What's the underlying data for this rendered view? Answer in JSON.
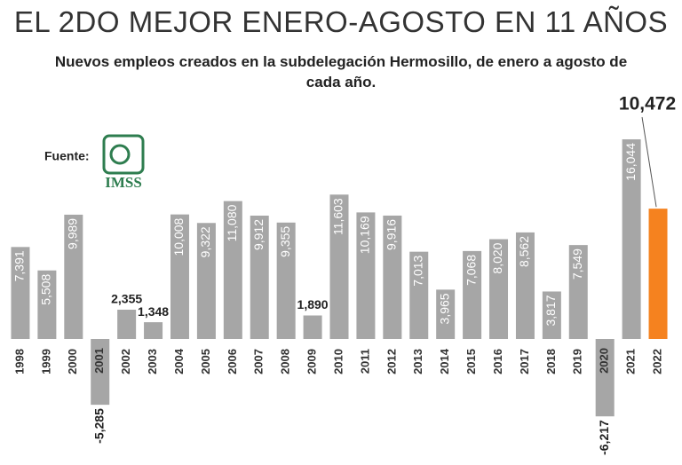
{
  "chart_data": {
    "type": "bar",
    "title": "EL 2DO MEJOR ENERO-AGOSTO EN 11 AÑOS",
    "subtitle": "Nuevos empleos creados en la subdelegación Hermosillo, de enero a agosto de cada año.",
    "source_label": "Fuente:",
    "source_logo": "IMSS",
    "categories": [
      "1998",
      "1999",
      "2000",
      "2001",
      "2002",
      "2003",
      "2004",
      "2005",
      "2006",
      "2007",
      "2008",
      "2009",
      "2010",
      "2011",
      "2012",
      "2013",
      "2014",
      "2015",
      "2016",
      "2017",
      "2018",
      "2019",
      "2020",
      "2021",
      "2022"
    ],
    "values": [
      7391,
      5508,
      9989,
      -5285,
      2355,
      1348,
      10008,
      9322,
      11080,
      9912,
      9355,
      1890,
      11603,
      10169,
      9916,
      7013,
      3965,
      7068,
      8020,
      8562,
      3817,
      7549,
      -6217,
      16044,
      10472
    ],
    "value_labels": [
      "7,391",
      "5,508",
      "9,989",
      "-5,285",
      "2,355",
      "1,348",
      "10,008",
      "9,322",
      "11,080",
      "9,912",
      "9,355",
      "1,890",
      "11,603",
      "10,169",
      "9,916",
      "7,013",
      "3,965",
      "7,068",
      "8,020",
      "8,562",
      "3,817",
      "7,549",
      "-6,217",
      "16,044",
      "10,472"
    ],
    "colors": [
      "#a6a6a6",
      "#a6a6a6",
      "#a6a6a6",
      "#a6a6a6",
      "#a6a6a6",
      "#a6a6a6",
      "#a6a6a6",
      "#a6a6a6",
      "#a6a6a6",
      "#a6a6a6",
      "#a6a6a6",
      "#a6a6a6",
      "#a6a6a6",
      "#a6a6a6",
      "#a6a6a6",
      "#a6a6a6",
      "#a6a6a6",
      "#a6a6a6",
      "#a6a6a6",
      "#a6a6a6",
      "#a6a6a6",
      "#a6a6a6",
      "#a6a6a6",
      "#a6a6a6",
      "#f5821f"
    ],
    "highlight_last": true
  }
}
